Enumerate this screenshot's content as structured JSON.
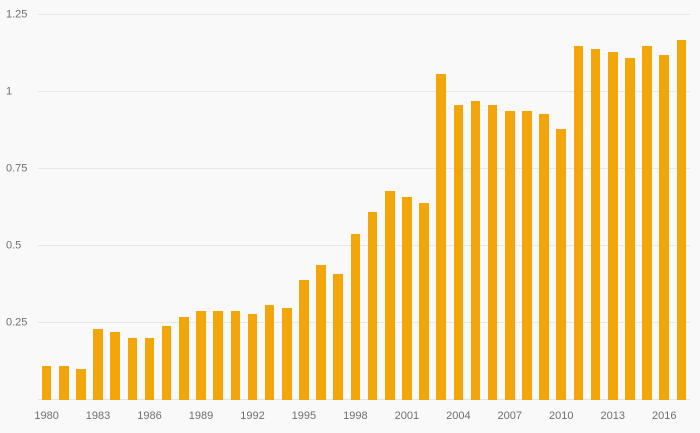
{
  "chart_data": {
    "type": "bar",
    "title": "",
    "xlabel": "",
    "ylabel": "",
    "x": [
      1980,
      1981,
      1982,
      1983,
      1984,
      1985,
      1986,
      1987,
      1988,
      1989,
      1990,
      1991,
      1992,
      1993,
      1994,
      1995,
      1996,
      1997,
      1998,
      1999,
      2000,
      2001,
      2002,
      2003,
      2004,
      2005,
      2006,
      2007,
      2008,
      2009,
      2010,
      2011,
      2012,
      2013,
      2014,
      2015,
      2016,
      2017
    ],
    "values": [
      0.11,
      0.11,
      0.1,
      0.23,
      0.22,
      0.2,
      0.2,
      0.24,
      0.27,
      0.29,
      0.29,
      0.29,
      0.28,
      0.31,
      0.3,
      0.39,
      0.44,
      0.41,
      0.54,
      0.61,
      0.68,
      0.66,
      0.64,
      1.06,
      0.96,
      0.97,
      0.96,
      0.94,
      0.94,
      0.93,
      0.88,
      1.15,
      1.14,
      1.13,
      1.11,
      1.15,
      1.12,
      1.17
    ],
    "y_ticks": [
      0.25,
      0.5,
      0.75,
      1,
      1.25
    ],
    "y_tick_labels": [
      "0.25",
      "0.5",
      "0.75",
      "1",
      "1.25"
    ],
    "x_tick_labels": [
      "1980",
      "1983",
      "1986",
      "1989",
      "1992",
      "1995",
      "1998",
      "2001",
      "2004",
      "2007",
      "2010",
      "2013",
      "2016"
    ],
    "ylim": [
      0,
      1.267
    ],
    "grid": true,
    "legend": false,
    "bar_color": "#f2a60a",
    "background": "#f9f9f9",
    "grid_color": "#e7e7e7",
    "tick_text_color": "#6f6f6f"
  }
}
